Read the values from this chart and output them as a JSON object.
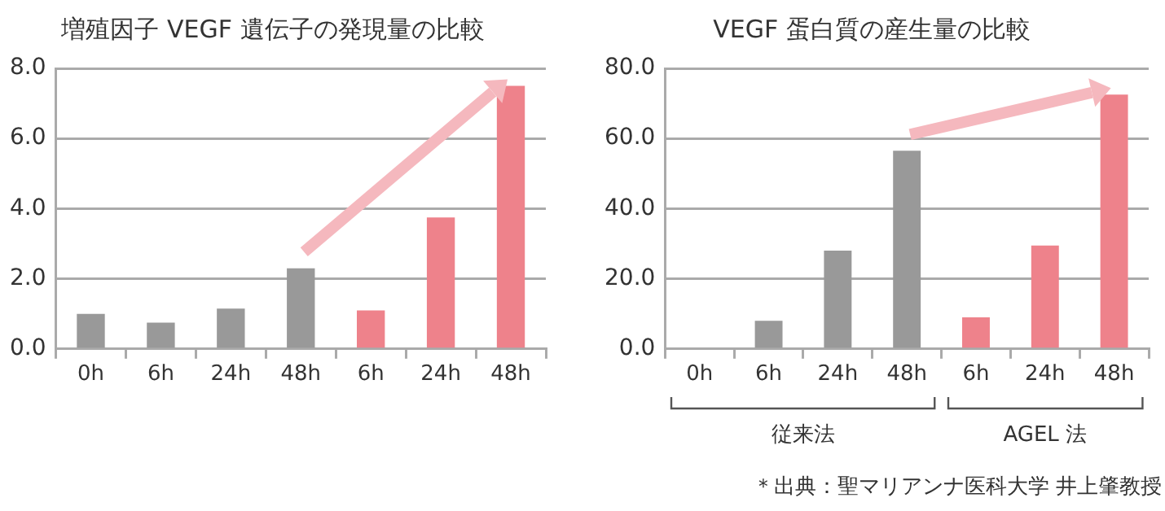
{
  "chart_data": [
    {
      "type": "bar",
      "title": "増殖因子 VEGF 遺伝子の発現量の比較",
      "categories": [
        "0h",
        "6h",
        "24h",
        "48h",
        "6h",
        "24h",
        "48h"
      ],
      "values": [
        1.0,
        0.75,
        1.15,
        2.3,
        1.1,
        3.75,
        7.5
      ],
      "colors": [
        "#999999",
        "#999999",
        "#999999",
        "#999999",
        "#ee828b",
        "#ee828b",
        "#ee828b"
      ],
      "ylim": [
        0,
        8
      ],
      "yticks": [
        {
          "value": 0,
          "label": "0.0"
        },
        {
          "value": 2,
          "label": "2.0"
        },
        {
          "value": 4,
          "label": "4.0"
        },
        {
          "value": 6,
          "label": "6.0"
        },
        {
          "value": 8,
          "label": "8.0"
        }
      ],
      "grid": "y",
      "legend": false
    },
    {
      "type": "bar",
      "title": "VEGF 蛋白質の産生量の比較",
      "categories": [
        "0h",
        "6h",
        "24h",
        "48h",
        "6h",
        "24h",
        "48h"
      ],
      "values": [
        0,
        8,
        28,
        56.5,
        9,
        29.5,
        72.5
      ],
      "colors": [
        "#999999",
        "#999999",
        "#999999",
        "#999999",
        "#ee828b",
        "#ee828b",
        "#ee828b"
      ],
      "ylim": [
        0,
        80
      ],
      "yticks": [
        {
          "value": 0,
          "label": "0.0"
        },
        {
          "value": 20,
          "label": "20.0"
        },
        {
          "value": 40,
          "label": "40.0"
        },
        {
          "value": 60,
          "label": "60.0"
        },
        {
          "value": 80,
          "label": "80.0"
        }
      ],
      "grid": "y",
      "legend": false,
      "annotations": [
        "従来法",
        "AGEL 法",
        "＊出典：聖マリアンナ医科大学 井上肇教授"
      ]
    }
  ]
}
